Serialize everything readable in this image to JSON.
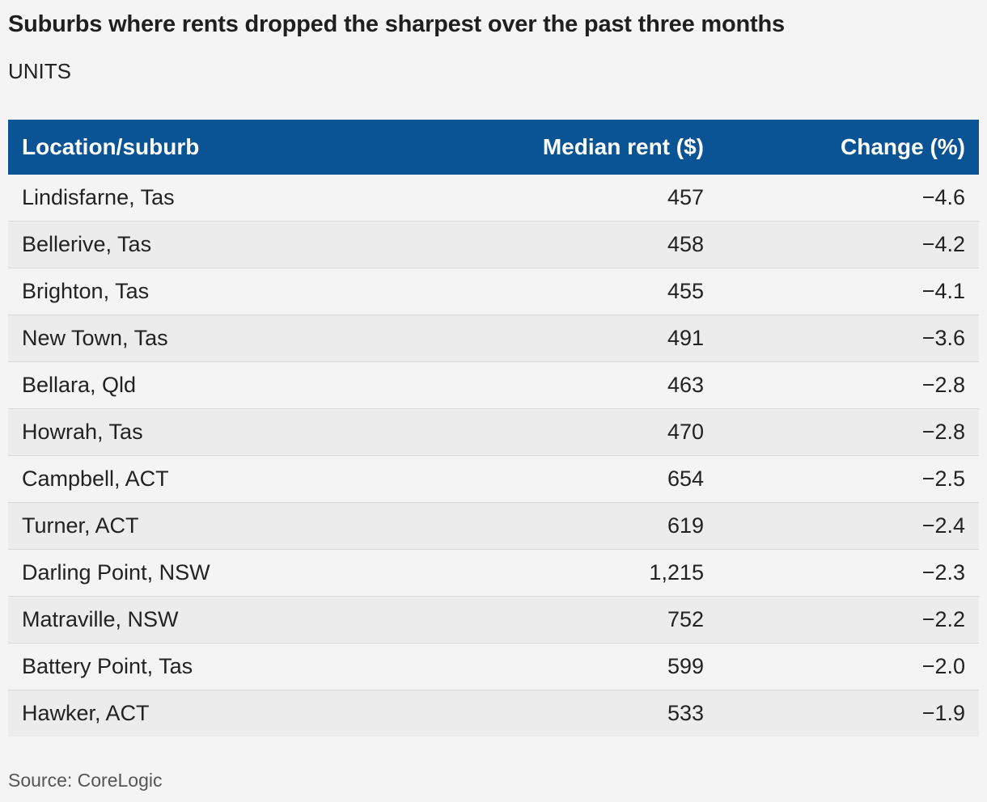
{
  "header": {
    "title": "Suburbs where rents dropped the sharpest over the past three months",
    "subtitle": "UNITS"
  },
  "chart_data": {
    "type": "table",
    "columns": [
      "Location/suburb",
      "Median rent ($)",
      "Change (%)"
    ],
    "rows": [
      {
        "location": "Lindisfarne, Tas",
        "rent": "457",
        "change": "−4.6"
      },
      {
        "location": "Bellerive, Tas",
        "rent": "458",
        "change": "−4.2"
      },
      {
        "location": "Brighton, Tas",
        "rent": "455",
        "change": "−4.1"
      },
      {
        "location": "New Town, Tas",
        "rent": "491",
        "change": "−3.6"
      },
      {
        "location": "Bellara, Qld",
        "rent": "463",
        "change": "−2.8"
      },
      {
        "location": "Howrah, Tas",
        "rent": "470",
        "change": "−2.8"
      },
      {
        "location": "Campbell, ACT",
        "rent": "654",
        "change": "−2.5"
      },
      {
        "location": "Turner, ACT",
        "rent": "619",
        "change": "−2.4"
      },
      {
        "location": "Darling Point, NSW",
        "rent": "1,215",
        "change": "−2.3"
      },
      {
        "location": "Matraville, NSW",
        "rent": "752",
        "change": "−2.2"
      },
      {
        "location": "Battery Point, Tas",
        "rent": "599",
        "change": "−2.0"
      },
      {
        "location": "Hawker, ACT",
        "rent": "533",
        "change": "−1.9"
      }
    ]
  },
  "footer": {
    "source": "Source: CoreLogic"
  },
  "colors": {
    "header_background": "#0a5394",
    "header_text": "#ffffff",
    "row_odd": "#f4f4f4",
    "row_even": "#ececec",
    "page_background": "#f4f4f4"
  }
}
